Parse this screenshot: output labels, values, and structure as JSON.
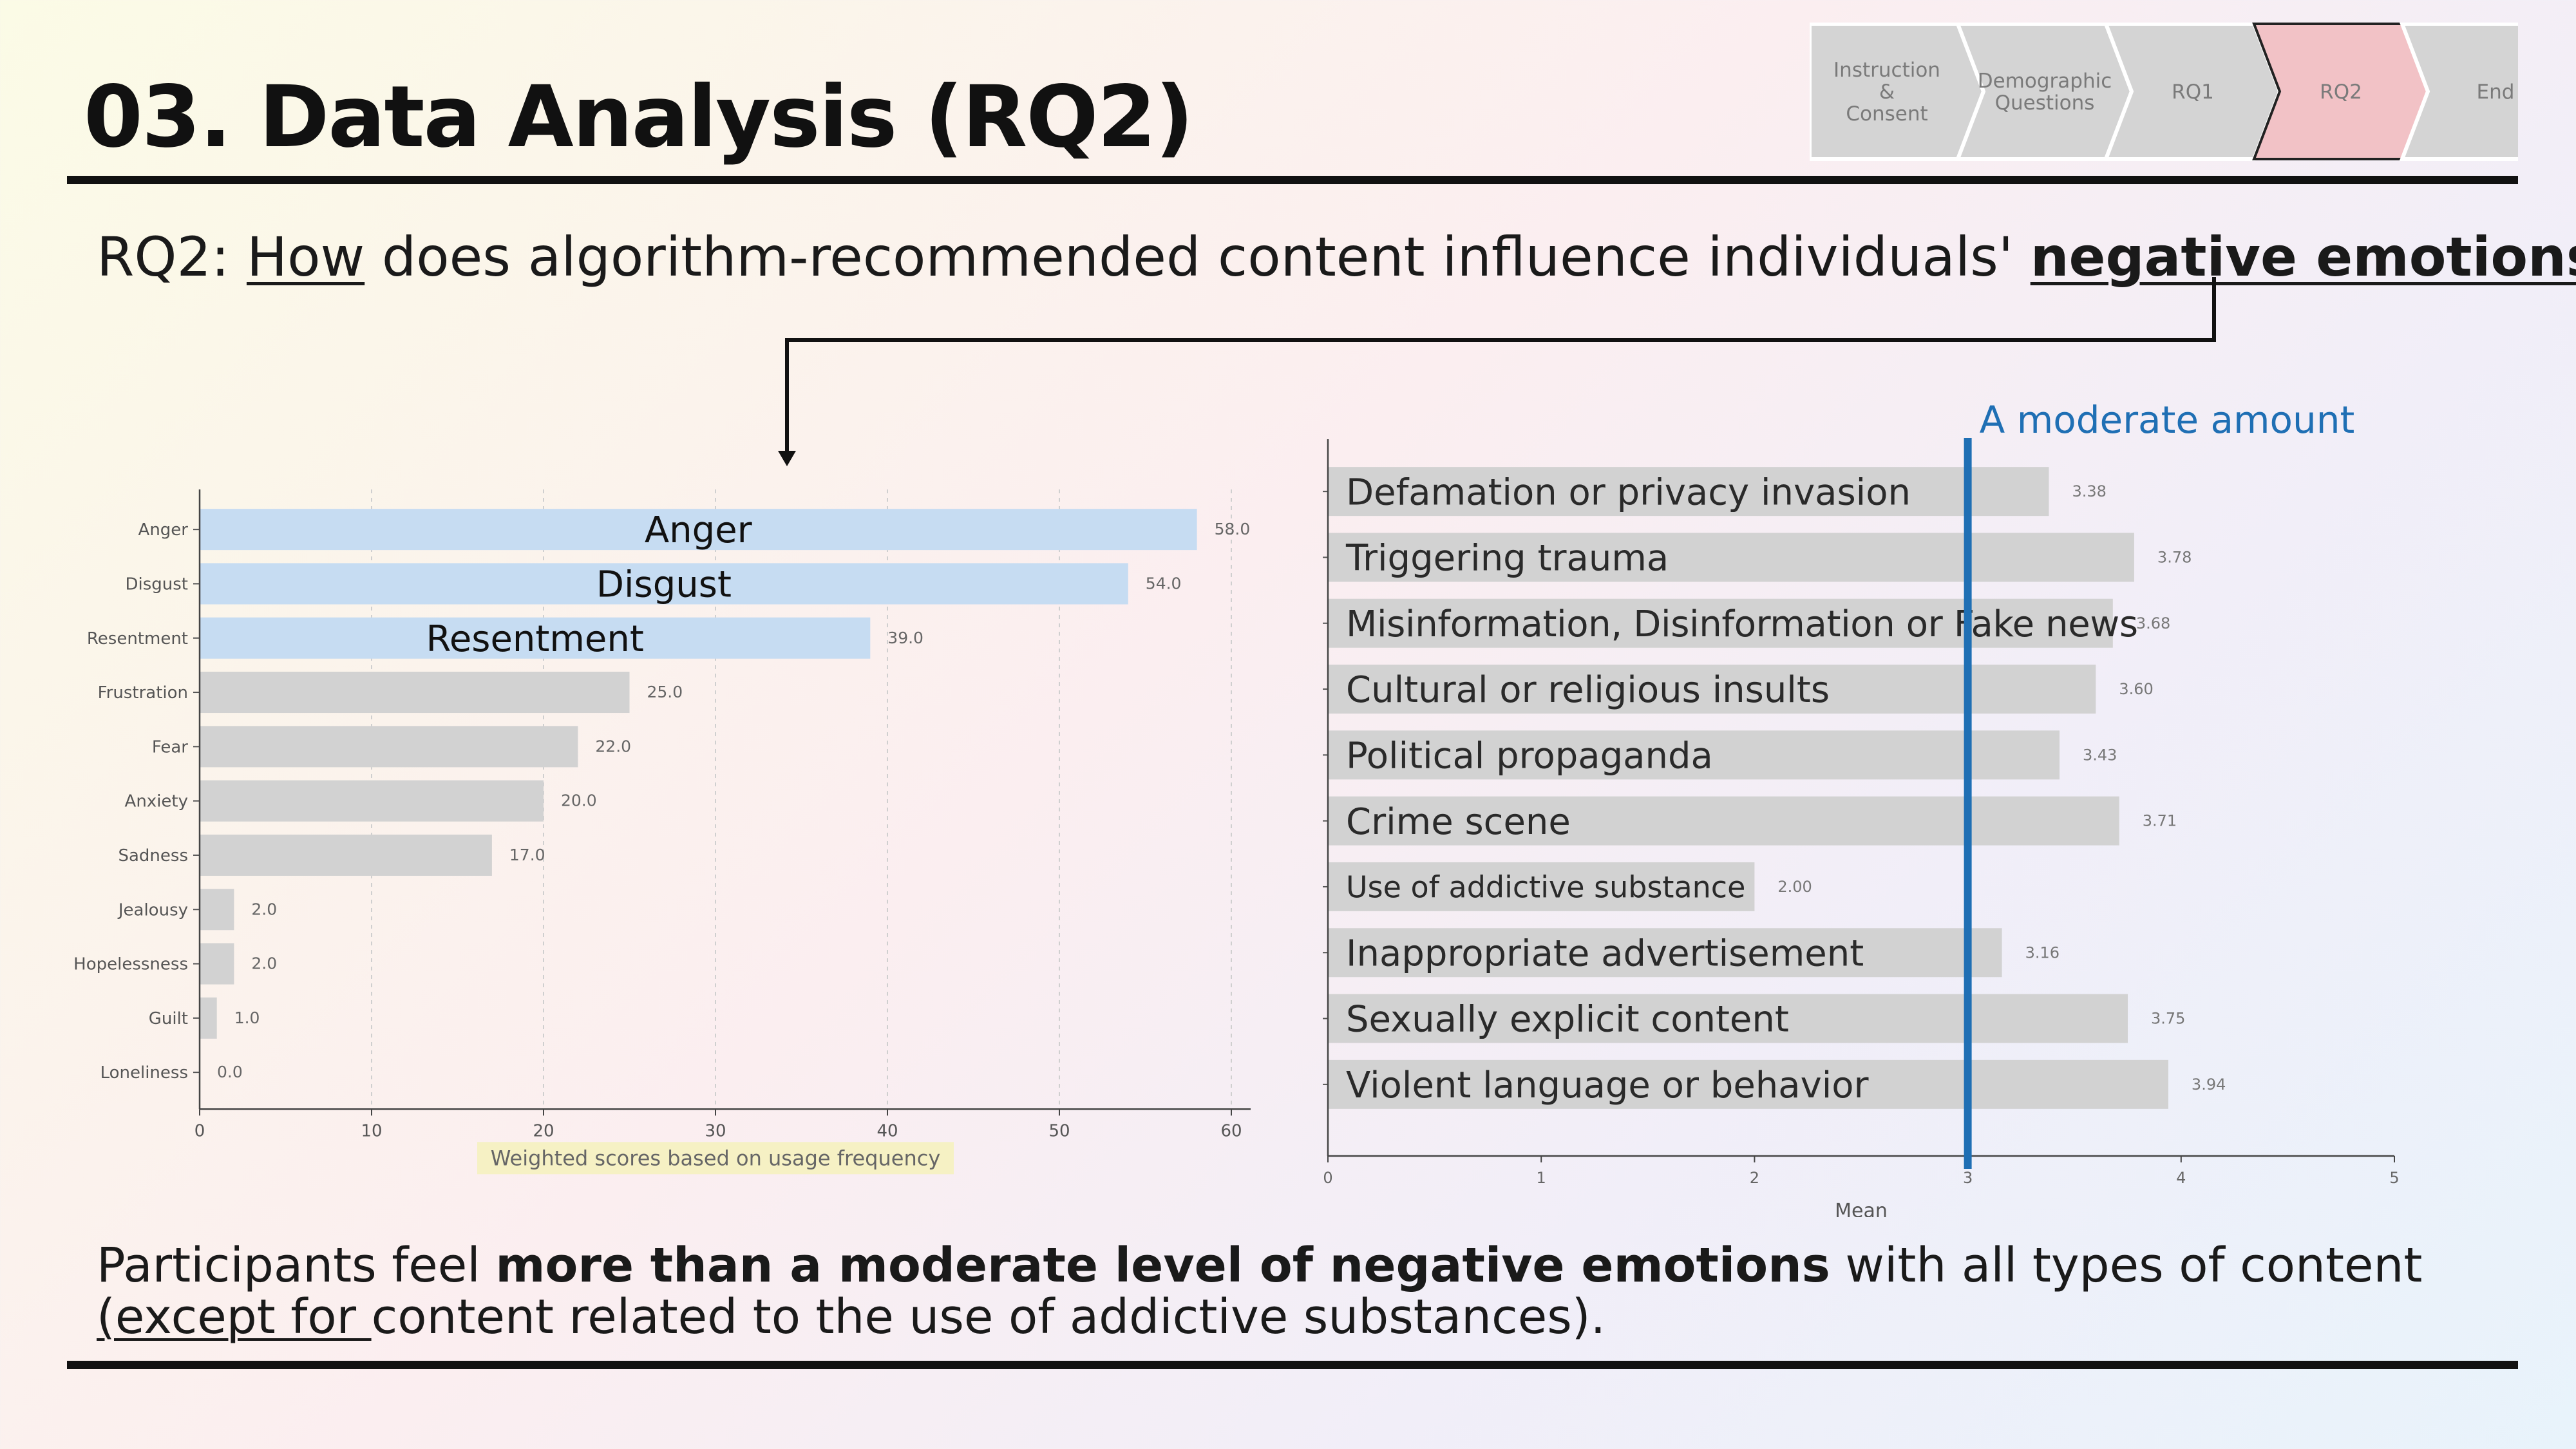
{
  "slide": {
    "title": "03. Data Analysis (RQ2)",
    "question": {
      "prefix": "RQ2: ",
      "how": "How",
      "middle": " does algorithm-recommended content influence individuals' ",
      "emphasis": "negative emotions",
      "suffix": "?"
    },
    "conclusion": {
      "line1_pre": "Participants feel ",
      "line1_bold": "more than a moderate level of negative emotions",
      "line1_post": " with all types of content",
      "line2_underlined": "(except for ",
      "line2_rest": "content related to the use of addictive substances)."
    }
  },
  "progress": {
    "steps": [
      {
        "lines": [
          "Instruction",
          "&",
          "Consent"
        ],
        "active": false
      },
      {
        "lines": [
          "Demographic",
          "Questions"
        ],
        "active": false
      },
      {
        "lines": [
          "RQ1"
        ],
        "active": false
      },
      {
        "lines": [
          "RQ2"
        ],
        "active": true
      },
      {
        "lines": [
          "End"
        ],
        "active": false
      }
    ],
    "colors": {
      "inactive": "#d4d4d4",
      "active": "#f2c2c6",
      "active_border": "#222222",
      "text": "#7a7a7a"
    }
  },
  "colors": {
    "highlight_bar": "#c6dcf2",
    "gray_bar": "#d2d2d2",
    "reference_line": "#1f6fb4"
  },
  "chart_data": [
    {
      "type": "bar",
      "orientation": "horizontal",
      "categories": [
        "Anger",
        "Disgust",
        "Resentment",
        "Frustration",
        "Fear",
        "Anxiety",
        "Sadness",
        "Jealousy",
        "Hopelessness",
        "Guilt",
        "Loneliness"
      ],
      "values": [
        58.0,
        54.0,
        39.0,
        25.0,
        22.0,
        20.0,
        17.0,
        2.0,
        2.0,
        1.0,
        0.0
      ],
      "value_labels": [
        "58.0",
        "54.0",
        "39.0",
        "25.0",
        "22.0",
        "20.0",
        "17.0",
        "2.0",
        "2.0",
        "1.0",
        "0.0"
      ],
      "highlighted": [
        "Anger",
        "Disgust",
        "Resentment"
      ],
      "xlabel": "Weighted scores based on usage frequency",
      "xlim": [
        0,
        60
      ],
      "xticks": [
        0,
        10,
        20,
        30,
        40,
        50,
        60
      ],
      "grid": "vertical dashed"
    },
    {
      "type": "bar",
      "orientation": "horizontal",
      "categories": [
        "Defamation or privacy invasion",
        "Triggering trauma",
        "Misinformation, Disinformation or Fake news",
        "Cultural or religious insults",
        "Political propaganda",
        "Crime scene",
        "Use of addictive substance",
        "Inappropriate advertisement",
        "Sexually explicit content",
        "Violent language or behavior"
      ],
      "values": [
        3.38,
        3.78,
        3.68,
        3.6,
        3.43,
        3.71,
        2.0,
        3.16,
        3.75,
        3.94
      ],
      "value_labels": [
        "3.38",
        "3.78",
        "3.68",
        "3.60",
        "3.43",
        "3.71",
        "2.00",
        "3.16",
        "3.75",
        "3.94"
      ],
      "xlabel": "Mean",
      "xlim": [
        0,
        5
      ],
      "xticks": [
        0,
        1,
        2,
        3,
        4,
        5
      ],
      "reference_line": {
        "x": 3,
        "label": "A moderate amount"
      }
    }
  ]
}
